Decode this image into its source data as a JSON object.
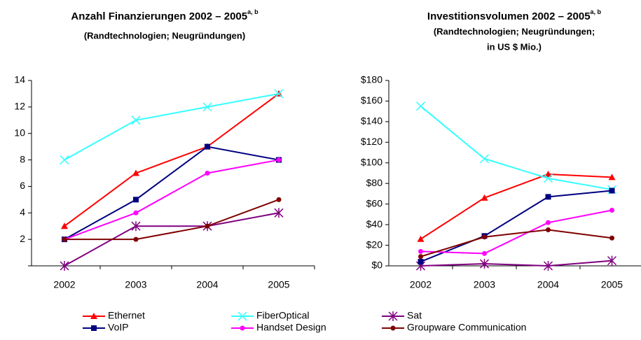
{
  "chart_data": [
    {
      "type": "line",
      "title": "Anzahl Finanzierungen 2002 – 2005",
      "title_superscript": "a, b",
      "subtitle": [
        "(Randtechnologien; Neugründungen)"
      ],
      "categories": [
        "2002",
        "2003",
        "2004",
        "2005"
      ],
      "ylim": [
        0,
        14
      ],
      "yticks": [
        2,
        4,
        6,
        8,
        10,
        12,
        14
      ],
      "grid": false,
      "series": [
        {
          "name": "Ethernet",
          "color": "#ff0000",
          "marker": "triangle",
          "values": [
            3,
            7,
            9,
            13
          ]
        },
        {
          "name": "FiberOptical",
          "color": "#33ffff",
          "marker": "x",
          "values": [
            8,
            11,
            12,
            13
          ]
        },
        {
          "name": "Sat",
          "color": "#800080",
          "marker": "asterisk",
          "values": [
            0,
            3,
            3,
            4
          ]
        },
        {
          "name": "VoIP",
          "color": "#000080",
          "marker": "square",
          "values": [
            2,
            5,
            9,
            8
          ]
        },
        {
          "name": "Handset Design",
          "color": "#ff00ff",
          "marker": "circle",
          "values": [
            2,
            4,
            7,
            8
          ]
        },
        {
          "name": "Groupware Communication",
          "color": "#800000",
          "marker": "circle",
          "values": [
            2,
            2,
            3,
            5
          ]
        }
      ]
    },
    {
      "type": "line",
      "title": "Investitionsvolumen 2002 – 2005",
      "title_superscript": "a, b",
      "subtitle": [
        "(Randtechnologien; Neugründungen;",
        "in US $ Mio.)"
      ],
      "categories": [
        "2002",
        "2003",
        "2004",
        "2005"
      ],
      "ylim": [
        0,
        180
      ],
      "yticks": [
        {
          "value": 0,
          "label": "$0"
        },
        {
          "value": 20,
          "label": "$20"
        },
        {
          "value": 40,
          "label": "$40"
        },
        {
          "value": 60,
          "label": "$60"
        },
        {
          "value": 80,
          "label": "$80"
        },
        {
          "value": 100,
          "label": "$100"
        },
        {
          "value": 120,
          "label": "$120"
        },
        {
          "value": 140,
          "label": "$140"
        },
        {
          "value": 160,
          "label": "$160"
        },
        {
          "value": 180,
          "label": "$180"
        }
      ],
      "grid": false,
      "series": [
        {
          "name": "Ethernet",
          "color": "#ff0000",
          "marker": "triangle",
          "values": [
            26,
            66,
            89,
            86
          ]
        },
        {
          "name": "FiberOptical",
          "color": "#33ffff",
          "marker": "x",
          "values": [
            155,
            104,
            85,
            74
          ]
        },
        {
          "name": "Sat",
          "color": "#800080",
          "marker": "asterisk",
          "values": [
            0,
            2,
            0,
            5
          ]
        },
        {
          "name": "VoIP",
          "color": "#000080",
          "marker": "square",
          "values": [
            4,
            29,
            67,
            73
          ]
        },
        {
          "name": "Handset Design",
          "color": "#ff00ff",
          "marker": "circle",
          "values": [
            14,
            12,
            42,
            54
          ]
        },
        {
          "name": "Groupware Communication",
          "color": "#800000",
          "marker": "circle",
          "values": [
            9,
            28,
            35,
            27
          ]
        }
      ]
    }
  ]
}
